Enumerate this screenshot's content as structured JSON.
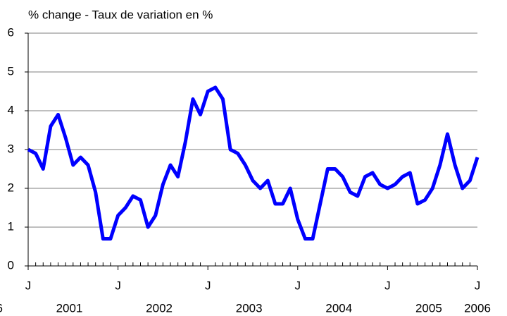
{
  "chart_data": {
    "type": "line",
    "title": "% change - Taux de variation en %",
    "categories": [
      "J",
      null,
      null,
      null,
      null,
      null,
      null,
      null,
      null,
      null,
      null,
      null,
      "J",
      null,
      null,
      null,
      null,
      null,
      null,
      null,
      null,
      null,
      null,
      null,
      "J",
      null,
      null,
      null,
      null,
      null,
      null,
      null,
      null,
      null,
      null,
      null,
      "J",
      null,
      null,
      null,
      null,
      null,
      null,
      null,
      null,
      null,
      null,
      null,
      "J",
      null,
      null,
      null,
      null,
      null,
      null,
      null,
      null,
      null,
      null,
      null,
      "J"
    ],
    "year_labels": [
      "6",
      "2001",
      "2002",
      "2003",
      "2004",
      "2005",
      "2006"
    ],
    "series": [
      {
        "color": "#0000ff",
        "values": [
          3.0,
          2.9,
          2.5,
          3.6,
          3.9,
          3.3,
          2.6,
          2.8,
          2.6,
          1.9,
          0.7,
          0.7,
          1.3,
          1.5,
          1.8,
          1.7,
          1.0,
          1.3,
          2.1,
          2.6,
          2.3,
          3.2,
          4.3,
          3.9,
          4.5,
          4.6,
          4.3,
          3.0,
          2.9,
          2.6,
          2.2,
          2.0,
          2.2,
          1.6,
          1.6,
          2.0,
          1.2,
          0.7,
          0.7,
          1.6,
          2.5,
          2.5,
          2.3,
          1.9,
          1.8,
          2.3,
          2.4,
          2.1,
          2.0,
          2.1,
          2.3,
          2.4,
          1.6,
          1.7,
          2.0,
          2.6,
          3.4,
          2.6,
          2.0,
          2.2,
          2.8
        ]
      }
    ],
    "ylim": [
      0,
      6
    ],
    "yticks": [
      0,
      1,
      2,
      3,
      4,
      5,
      6
    ],
    "grid": true
  }
}
